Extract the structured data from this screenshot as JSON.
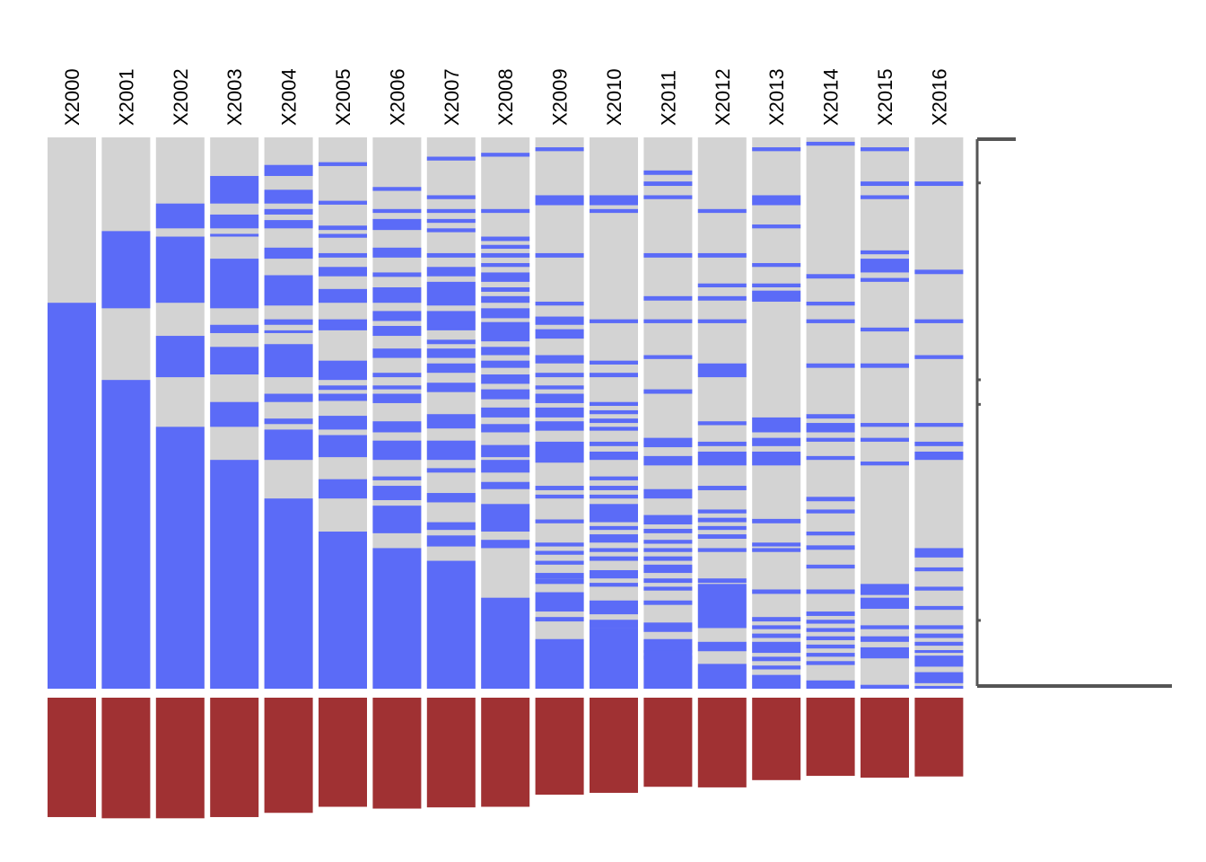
{
  "chart_data": {
    "type": "heatmap",
    "title": "",
    "xlabel": "",
    "ylabel": "",
    "columns": [
      "X2000",
      "X2001",
      "X2002",
      "X2003",
      "X2004",
      "X2005",
      "X2006",
      "X2007",
      "X2008",
      "X2009",
      "X2010",
      "X2011",
      "X2012",
      "X2013",
      "X2014",
      "X2015",
      "X2016"
    ],
    "colors": {
      "present": "#5B6BF7",
      "missing": "#D3D3D3",
      "summary": "#A03133",
      "axis": "#555555"
    },
    "row_count": 120,
    "present_segments": [
      [
        [
          0.3,
          1.0
        ]
      ],
      [
        [
          0.17,
          0.31
        ],
        [
          0.44,
          1.0
        ]
      ],
      [
        [
          0.12,
          0.165
        ],
        [
          0.18,
          0.3
        ],
        [
          0.36,
          0.435
        ],
        [
          0.525,
          1.0
        ]
      ],
      [
        [
          0.07,
          0.12
        ],
        [
          0.14,
          0.165
        ],
        [
          0.175,
          0.18
        ],
        [
          0.22,
          0.31
        ],
        [
          0.34,
          0.355
        ],
        [
          0.38,
          0.43
        ],
        [
          0.48,
          0.525
        ],
        [
          0.585,
          1.0
        ]
      ],
      [
        [
          0.05,
          0.07
        ],
        [
          0.095,
          0.12
        ],
        [
          0.13,
          0.14
        ],
        [
          0.15,
          0.165
        ],
        [
          0.2,
          0.22
        ],
        [
          0.25,
          0.305
        ],
        [
          0.33,
          0.34
        ],
        [
          0.35,
          0.355
        ],
        [
          0.375,
          0.435
        ],
        [
          0.465,
          0.48
        ],
        [
          0.51,
          0.52
        ],
        [
          0.53,
          0.585
        ],
        [
          0.655,
          1.0
        ]
      ],
      [
        [
          0.045,
          0.052
        ],
        [
          0.115,
          0.122
        ],
        [
          0.16,
          0.168
        ],
        [
          0.175,
          0.182
        ],
        [
          0.21,
          0.218
        ],
        [
          0.235,
          0.252
        ],
        [
          0.275,
          0.3
        ],
        [
          0.33,
          0.35
        ],
        [
          0.405,
          0.44
        ],
        [
          0.45,
          0.458
        ],
        [
          0.465,
          0.478
        ],
        [
          0.505,
          0.53
        ],
        [
          0.54,
          0.58
        ],
        [
          0.62,
          0.655
        ],
        [
          0.715,
          1.0
        ]
      ],
      [
        [
          0.09,
          0.097
        ],
        [
          0.13,
          0.137
        ],
        [
          0.148,
          0.168
        ],
        [
          0.2,
          0.218
        ],
        [
          0.245,
          0.253
        ],
        [
          0.272,
          0.3
        ],
        [
          0.315,
          0.333
        ],
        [
          0.342,
          0.36
        ],
        [
          0.383,
          0.4
        ],
        [
          0.427,
          0.435
        ],
        [
          0.45,
          0.457
        ],
        [
          0.465,
          0.482
        ],
        [
          0.515,
          0.535
        ],
        [
          0.55,
          0.585
        ],
        [
          0.615,
          0.622
        ],
        [
          0.632,
          0.658
        ],
        [
          0.668,
          0.718
        ],
        [
          0.745,
          1.0
        ]
      ],
      [
        [
          0.035,
          0.042
        ],
        [
          0.105,
          0.112
        ],
        [
          0.13,
          0.137
        ],
        [
          0.148,
          0.155
        ],
        [
          0.165,
          0.172
        ],
        [
          0.21,
          0.218
        ],
        [
          0.235,
          0.252
        ],
        [
          0.262,
          0.305
        ],
        [
          0.315,
          0.35
        ],
        [
          0.367,
          0.375
        ],
        [
          0.383,
          0.4
        ],
        [
          0.41,
          0.427
        ],
        [
          0.445,
          0.462
        ],
        [
          0.502,
          0.528
        ],
        [
          0.55,
          0.585
        ],
        [
          0.6,
          0.608
        ],
        [
          0.645,
          0.662
        ],
        [
          0.698,
          0.712
        ],
        [
          0.722,
          0.742
        ],
        [
          0.768,
          1.0
        ]
      ],
      [
        [
          0.028,
          0.035
        ],
        [
          0.13,
          0.137
        ],
        [
          0.18,
          0.188
        ],
        [
          0.195,
          0.202
        ],
        [
          0.21,
          0.218
        ],
        [
          0.228,
          0.235
        ],
        [
          0.245,
          0.262
        ],
        [
          0.272,
          0.28
        ],
        [
          0.288,
          0.3
        ],
        [
          0.31,
          0.328
        ],
        [
          0.335,
          0.37
        ],
        [
          0.38,
          0.395
        ],
        [
          0.405,
          0.418
        ],
        [
          0.43,
          0.447
        ],
        [
          0.457,
          0.475
        ],
        [
          0.49,
          0.508
        ],
        [
          0.52,
          0.535
        ],
        [
          0.558,
          0.58
        ],
        [
          0.585,
          0.608
        ],
        [
          0.625,
          0.638
        ],
        [
          0.665,
          0.715
        ],
        [
          0.73,
          0.745
        ],
        [
          0.835,
          1.0
        ]
      ],
      [
        [
          0.018,
          0.025
        ],
        [
          0.105,
          0.123
        ],
        [
          0.21,
          0.218
        ],
        [
          0.298,
          0.305
        ],
        [
          0.325,
          0.34
        ],
        [
          0.348,
          0.365
        ],
        [
          0.395,
          0.41
        ],
        [
          0.427,
          0.435
        ],
        [
          0.45,
          0.457
        ],
        [
          0.465,
          0.482
        ],
        [
          0.49,
          0.508
        ],
        [
          0.515,
          0.532
        ],
        [
          0.552,
          0.59
        ],
        [
          0.632,
          0.64
        ],
        [
          0.648,
          0.655
        ],
        [
          0.693,
          0.7
        ],
        [
          0.735,
          0.742
        ],
        [
          0.75,
          0.757
        ],
        [
          0.768,
          0.775
        ],
        [
          0.79,
          0.8
        ],
        [
          0.8,
          0.81
        ],
        [
          0.825,
          0.86
        ],
        [
          0.87,
          0.878
        ],
        [
          0.91,
          1.0
        ]
      ],
      [
        [
          0.105,
          0.123
        ],
        [
          0.13,
          0.137
        ],
        [
          0.33,
          0.337
        ],
        [
          0.405,
          0.412
        ],
        [
          0.427,
          0.435
        ],
        [
          0.48,
          0.487
        ],
        [
          0.495,
          0.502
        ],
        [
          0.51,
          0.518
        ],
        [
          0.525,
          0.532
        ],
        [
          0.552,
          0.56
        ],
        [
          0.57,
          0.585
        ],
        [
          0.615,
          0.622
        ],
        [
          0.632,
          0.64
        ],
        [
          0.648,
          0.655
        ],
        [
          0.665,
          0.698
        ],
        [
          0.705,
          0.712
        ],
        [
          0.72,
          0.735
        ],
        [
          0.745,
          0.752
        ],
        [
          0.76,
          0.768
        ],
        [
          0.785,
          0.8
        ],
        [
          0.808,
          0.815
        ],
        [
          0.84,
          0.865
        ],
        [
          0.875,
          0.89
        ],
        [
          0.895,
          0.912
        ],
        [
          0.89,
          1.0
        ]
      ],
      [
        [
          0.06,
          0.068
        ],
        [
          0.08,
          0.088
        ],
        [
          0.105,
          0.112
        ],
        [
          0.21,
          0.218
        ],
        [
          0.288,
          0.296
        ],
        [
          0.33,
          0.337
        ],
        [
          0.395,
          0.402
        ],
        [
          0.457,
          0.465
        ],
        [
          0.545,
          0.562
        ],
        [
          0.578,
          0.595
        ],
        [
          0.638,
          0.655
        ],
        [
          0.685,
          0.702
        ],
        [
          0.71,
          0.718
        ],
        [
          0.73,
          0.737
        ],
        [
          0.745,
          0.752
        ],
        [
          0.76,
          0.768
        ],
        [
          0.775,
          0.79
        ],
        [
          0.8,
          0.808
        ],
        [
          0.815,
          0.822
        ],
        [
          0.84,
          0.848
        ],
        [
          0.88,
          0.897
        ],
        [
          0.91,
          0.935
        ],
        [
          0.94,
          0.947
        ],
        [
          0.93,
          1.0
        ]
      ],
      [
        [
          0.13,
          0.137
        ],
        [
          0.21,
          0.218
        ],
        [
          0.265,
          0.272
        ],
        [
          0.288,
          0.296
        ],
        [
          0.33,
          0.337
        ],
        [
          0.41,
          0.435
        ],
        [
          0.515,
          0.522
        ],
        [
          0.552,
          0.56
        ],
        [
          0.57,
          0.595
        ],
        [
          0.632,
          0.64
        ],
        [
          0.675,
          0.682
        ],
        [
          0.69,
          0.698
        ],
        [
          0.705,
          0.712
        ],
        [
          0.72,
          0.728
        ],
        [
          0.745,
          0.752
        ],
        [
          0.8,
          0.808
        ],
        [
          0.81,
          0.89
        ],
        [
          0.915,
          0.932
        ],
        [
          0.955,
          1.0
        ]
      ],
      [
        [
          0.018,
          0.025
        ],
        [
          0.105,
          0.123
        ],
        [
          0.158,
          0.165
        ],
        [
          0.228,
          0.235
        ],
        [
          0.265,
          0.272
        ],
        [
          0.278,
          0.298
        ],
        [
          0.508,
          0.535
        ],
        [
          0.545,
          0.56
        ],
        [
          0.57,
          0.595
        ],
        [
          0.692,
          0.7
        ],
        [
          0.735,
          0.742
        ],
        [
          0.745,
          0.752
        ],
        [
          0.82,
          0.828
        ],
        [
          0.87,
          0.878
        ],
        [
          0.885,
          0.892
        ],
        [
          0.9,
          0.908
        ],
        [
          0.915,
          0.935
        ],
        [
          0.942,
          0.95
        ],
        [
          0.958,
          0.965
        ],
        [
          0.975,
          1.0
        ]
      ],
      [
        [
          0.008,
          0.015
        ],
        [
          0.248,
          0.256
        ],
        [
          0.298,
          0.305
        ],
        [
          0.33,
          0.337
        ],
        [
          0.41,
          0.418
        ],
        [
          0.502,
          0.51
        ],
        [
          0.518,
          0.535
        ],
        [
          0.545,
          0.552
        ],
        [
          0.578,
          0.585
        ],
        [
          0.652,
          0.66
        ],
        [
          0.675,
          0.682
        ],
        [
          0.715,
          0.722
        ],
        [
          0.74,
          0.748
        ],
        [
          0.775,
          0.782
        ],
        [
          0.82,
          0.828
        ],
        [
          0.86,
          0.868
        ],
        [
          0.875,
          0.882
        ],
        [
          0.89,
          0.897
        ],
        [
          0.905,
          0.912
        ],
        [
          0.92,
          0.927
        ],
        [
          0.935,
          0.942
        ],
        [
          0.95,
          0.957
        ],
        [
          0.985,
          1.0
        ]
      ],
      [
        [
          0.018,
          0.025
        ],
        [
          0.08,
          0.088
        ],
        [
          0.105,
          0.112
        ],
        [
          0.205,
          0.212
        ],
        [
          0.22,
          0.245
        ],
        [
          0.255,
          0.262
        ],
        [
          0.345,
          0.352
        ],
        [
          0.41,
          0.418
        ],
        [
          0.518,
          0.525
        ],
        [
          0.545,
          0.552
        ],
        [
          0.588,
          0.595
        ],
        [
          0.81,
          0.83
        ],
        [
          0.835,
          0.855
        ],
        [
          0.885,
          0.892
        ],
        [
          0.905,
          0.915
        ],
        [
          0.925,
          0.945
        ],
        [
          0.993,
          1.0
        ]
      ],
      [
        [
          0.08,
          0.088
        ],
        [
          0.24,
          0.248
        ],
        [
          0.33,
          0.337
        ],
        [
          0.395,
          0.402
        ],
        [
          0.518,
          0.525
        ],
        [
          0.552,
          0.56
        ],
        [
          0.57,
          0.585
        ],
        [
          0.745,
          0.762
        ],
        [
          0.78,
          0.787
        ],
        [
          0.815,
          0.822
        ],
        [
          0.85,
          0.857
        ],
        [
          0.885,
          0.892
        ],
        [
          0.9,
          0.908
        ],
        [
          0.915,
          0.922
        ],
        [
          0.93,
          0.935
        ],
        [
          0.94,
          0.96
        ],
        [
          0.97,
          0.99
        ],
        [
          0.995,
          1.0
        ]
      ]
    ],
    "column_summary": [
      0.985,
      0.995,
      0.995,
      0.985,
      0.95,
      0.9,
      0.915,
      0.905,
      0.9,
      0.8,
      0.785,
      0.735,
      0.74,
      0.68,
      0.645,
      0.66,
      0.65
    ],
    "row_missingness_axis": {
      "max_label_fraction": 0.25,
      "tick_fractions": [
        0.0,
        0.08,
        0.44,
        0.485,
        0.88,
        1.0
      ]
    }
  }
}
